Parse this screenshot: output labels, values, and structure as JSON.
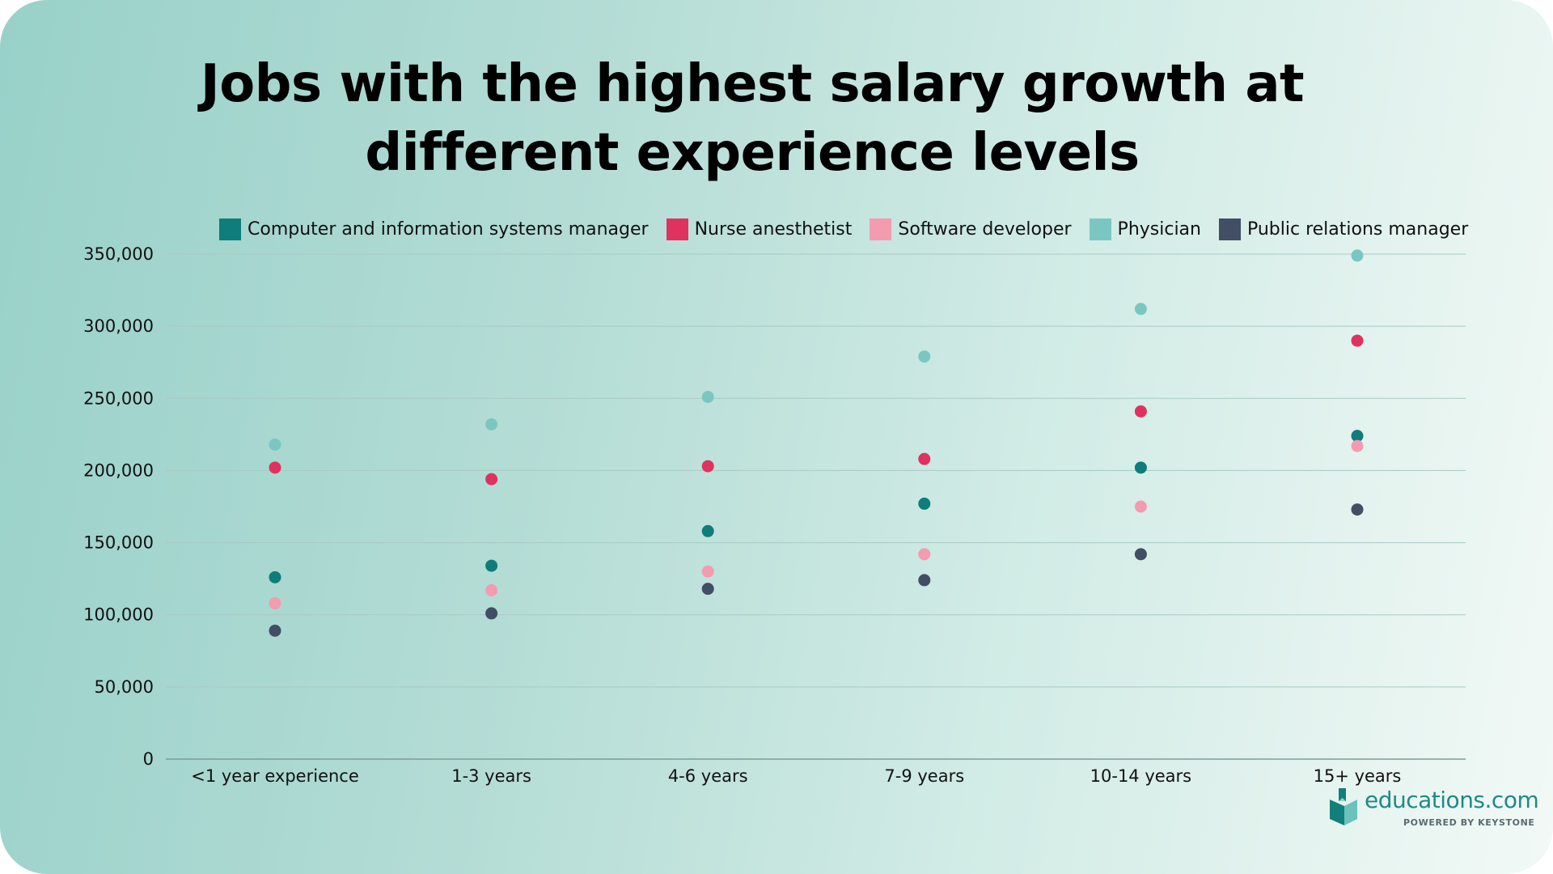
{
  "chart_data": {
    "type": "scatter",
    "title": "Jobs with the highest salary growth at different experience levels",
    "xlabel": "",
    "ylabel": "",
    "ylim": [
      0,
      350000
    ],
    "yticks": [
      0,
      50000,
      100000,
      150000,
      200000,
      250000,
      300000,
      350000
    ],
    "ytick_labels": [
      "0",
      "50,000",
      "100,000",
      "150,000",
      "200,000",
      "250,000",
      "300,000",
      "350,000"
    ],
    "grid": true,
    "legend_position": "top",
    "categories": [
      "<1 year experience",
      "1-3 years",
      "4-6 years",
      "7-9 years",
      "10-14 years",
      "15+ years"
    ],
    "series": [
      {
        "name": "Computer and information systems manager",
        "color": "#0f7d7a",
        "values": [
          126000,
          134000,
          158000,
          177000,
          202000,
          224000
        ]
      },
      {
        "name": "Nurse anesthetist",
        "color": "#e0325e",
        "values": [
          202000,
          194000,
          203000,
          208000,
          241000,
          290000
        ]
      },
      {
        "name": "Software developer",
        "color": "#f49bb0",
        "values": [
          108000,
          117000,
          130000,
          142000,
          175000,
          217000
        ]
      },
      {
        "name": "Physician",
        "color": "#7cc6c2",
        "values": [
          218000,
          232000,
          251000,
          279000,
          312000,
          349000
        ]
      },
      {
        "name": "Public relations manager",
        "color": "#414e63",
        "values": [
          89000,
          101000,
          118000,
          124000,
          142000,
          173000
        ]
      }
    ]
  },
  "logo": {
    "brand": "educations",
    "suffix": ".com",
    "tagline": "POWERED BY KEYSTONE",
    "brand_color": "#1f8a86"
  }
}
